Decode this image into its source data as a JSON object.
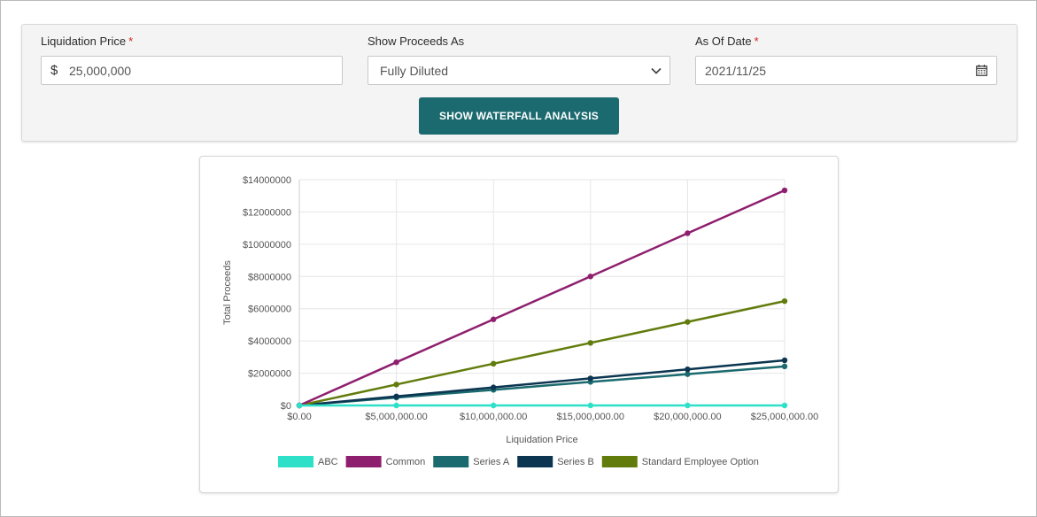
{
  "form": {
    "liquidation_price": {
      "label": "Liquidation Price",
      "required_mark": "*",
      "currency_symbol": "$",
      "value": "25,000,000"
    },
    "show_proceeds_as": {
      "label": "Show Proceeds As",
      "selected": "Fully Diluted"
    },
    "as_of_date": {
      "label": "As Of Date",
      "required_mark": "*",
      "value": "2021/11/25"
    },
    "submit_label": "SHOW WATERFALL ANALYSIS"
  },
  "colors": {
    "accent": "#1b6a6f",
    "required": "#d11f1f",
    "ABC": "#2ee0c8",
    "Common": "#8e1f6e",
    "Series A": "#1b6a6f",
    "Series B": "#0b3550",
    "Standard Employee Option": "#627c0c"
  },
  "chart_data": {
    "type": "line",
    "xlabel": "Liquidation Price",
    "ylabel": "Total Proceeds",
    "x": [
      0,
      5000000,
      10000000,
      15000000,
      20000000,
      25000000
    ],
    "x_tick_labels": [
      "$0.00",
      "$5,000,000.00",
      "$10,000,000.00",
      "$15,000,000.00",
      "$20,000,000.00",
      "$25,000,000.00"
    ],
    "y_tick_values": [
      0,
      2000000,
      4000000,
      6000000,
      8000000,
      10000000,
      12000000,
      14000000
    ],
    "y_tick_labels": [
      "$0",
      "$2000000",
      "$4000000",
      "$6000000",
      "$8000000",
      "$10000000",
      "$12000000",
      "$14000000"
    ],
    "xlim": [
      0,
      25000000
    ],
    "ylim": [
      0,
      14000000
    ],
    "grid": true,
    "legend_position": "bottom",
    "series": [
      {
        "name": "ABC",
        "values": [
          0,
          0,
          0,
          0,
          0,
          0
        ]
      },
      {
        "name": "Common",
        "values": [
          0,
          2680000,
          5340000,
          8000000,
          10680000,
          13340000
        ]
      },
      {
        "name": "Series A",
        "values": [
          0,
          490000,
          970000,
          1460000,
          1940000,
          2420000
        ]
      },
      {
        "name": "Series B",
        "values": [
          0,
          560000,
          1120000,
          1680000,
          2240000,
          2800000
        ]
      },
      {
        "name": "Standard Employee Option",
        "values": [
          0,
          1300000,
          2590000,
          3880000,
          5180000,
          6470000
        ]
      }
    ]
  }
}
